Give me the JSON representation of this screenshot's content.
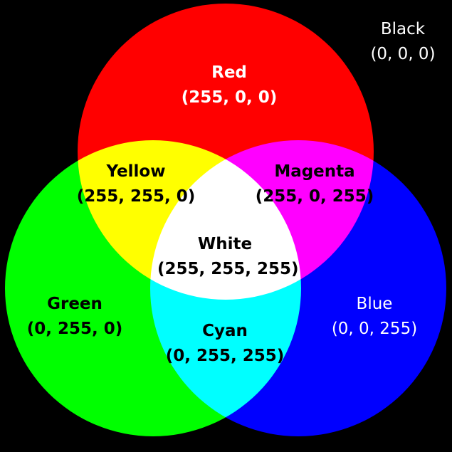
{
  "colors": {
    "background": "#000000",
    "red": "#FF0000",
    "green": "#00FF00",
    "blue": "#0000FF",
    "yellow": "#FFFF00",
    "magenta": "#FF00FF",
    "cyan": "#00FFFF",
    "white": "#FFFFFF"
  },
  "regions": {
    "black": {
      "name": "Black",
      "rgb": "(0, 0, 0)"
    },
    "red": {
      "name": "Red",
      "rgb": "(255, 0, 0)"
    },
    "yellow": {
      "name": "Yellow",
      "rgb": "(255, 255, 0)"
    },
    "magenta": {
      "name": "Magenta",
      "rgb": "(255, 0, 255)"
    },
    "white": {
      "name": "White",
      "rgb": "(255, 255, 255)"
    },
    "green": {
      "name": "Green",
      "rgb": "(0, 255, 0)"
    },
    "blue": {
      "name": "Blue",
      "rgb": "(0, 0, 255)"
    },
    "cyan": {
      "name": "Cyan",
      "rgb": "(0, 255, 255)"
    }
  }
}
